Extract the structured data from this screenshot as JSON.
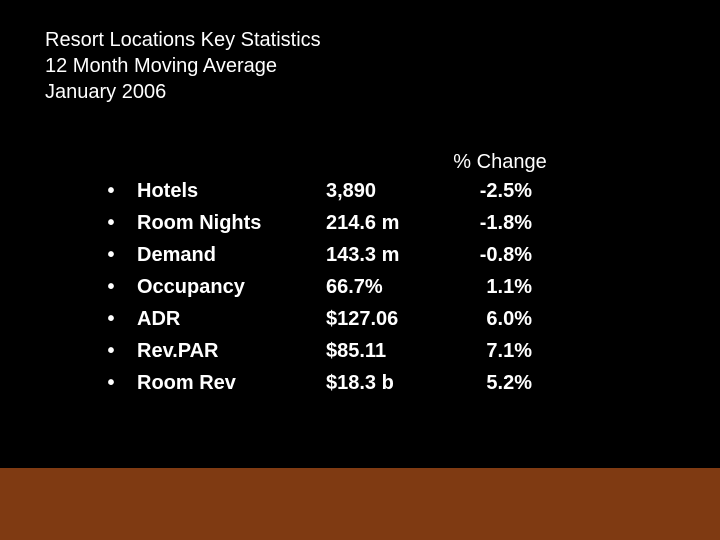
{
  "title": {
    "line1": "Resort Locations Key Statistics",
    "line2": "12 Month Moving Average",
    "line3": "January 2006"
  },
  "table": {
    "change_header": "% Change",
    "bullet_glyph": "•",
    "rows": [
      {
        "label": "Hotels",
        "value": "3,890",
        "change": "-2.5%"
      },
      {
        "label": "Room Nights",
        "value": "214.6 m",
        "change": "-1.8%"
      },
      {
        "label": "Demand",
        "value": "143.3 m",
        "change": "-0.8%"
      },
      {
        "label": "Occupancy",
        "value": "66.7%",
        "change": "1.1%"
      },
      {
        "label": "ADR",
        "value": "$127.06",
        "change": "6.0%"
      },
      {
        "label": "Rev.PAR",
        "value": "$85.11",
        "change": "7.1%"
      },
      {
        "label": "Room Rev",
        "value": "$18.3 b",
        "change": "5.2%"
      }
    ]
  },
  "colors": {
    "background": "#000000",
    "text": "#ffffff",
    "footer_bar": "#7f3a12"
  }
}
